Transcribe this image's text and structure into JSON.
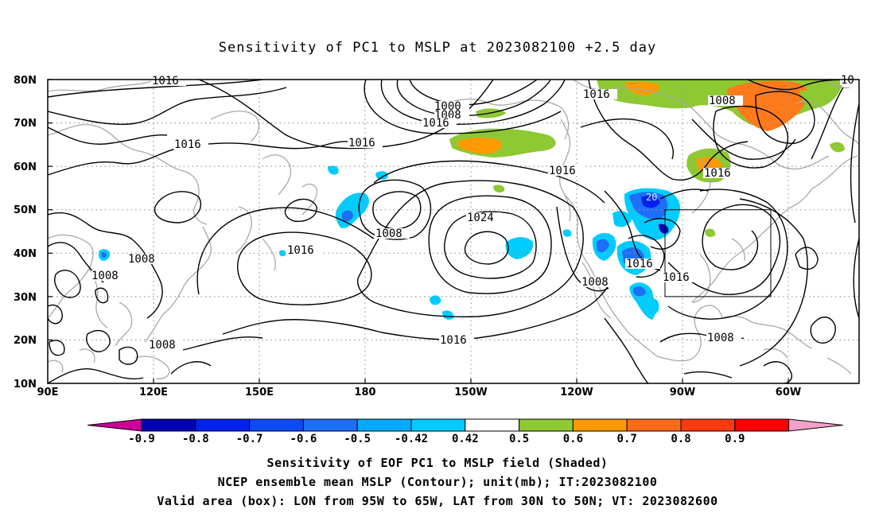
{
  "title": "Sensitivity of PC1 to MSLP at 2023082100 +2.5 day",
  "lat_labels": [
    "80N",
    "70N",
    "60N",
    "50N",
    "40N",
    "30N",
    "20N",
    "10N"
  ],
  "lon_labels": [
    "90E",
    "120E",
    "150E",
    "180",
    "150W",
    "120W",
    "90W",
    "60W"
  ],
  "contour_labels": {
    "c1016_nw": "1016",
    "c1000": "1000",
    "c1008_n": "1008",
    "c1016_n": "1016",
    "c1016_ne": "1016",
    "c1008_ne": "1008",
    "c10_edge": "10",
    "c1016_w": "1016",
    "c1016_mid": "1016",
    "c1016_gulf": "1016",
    "c1016_alaska": "1016",
    "c1008_aleut": "1008",
    "c1024": "1024",
    "c1016_pac": "1016",
    "c1008_sea1": "1008",
    "c1008_sea2": "1008",
    "c1008_sea3": "1008",
    "c1016_subtrop": "1016",
    "c1008_mex": "1008",
    "c1016_us1": "1016",
    "c1016_us2": "1016",
    "c1008_atl": "1008",
    "c20": "20"
  },
  "colorbar": {
    "labels": [
      "-0.9",
      "-0.8",
      "-0.7",
      "-0.6",
      "-0.5",
      "-0.42",
      "0.42",
      "0.5",
      "0.6",
      "0.7",
      "0.8",
      "0.9"
    ],
    "colors": [
      "#0000b4",
      "#0022ee",
      "#0c4af8",
      "#1e6ef8",
      "#00aaff",
      "#00ccff",
      "#ffffff",
      "#8ec832",
      "#ff9900",
      "#ff6a1a",
      "#ff3a10",
      "#ff0000"
    ],
    "low_end_color": "#cc0099",
    "high_end_color": "#f4a0cc"
  },
  "caption": {
    "line1": "Sensitivity of EOF PC1 to MSLP field (Shaded)",
    "line2": "NCEP ensemble mean MSLP (Contour); unit(mb); IT:2023082100",
    "line3": "Valid area (box): LON from 95W to 65W, LAT from 30N to 50N; VT: 2023082600"
  }
}
